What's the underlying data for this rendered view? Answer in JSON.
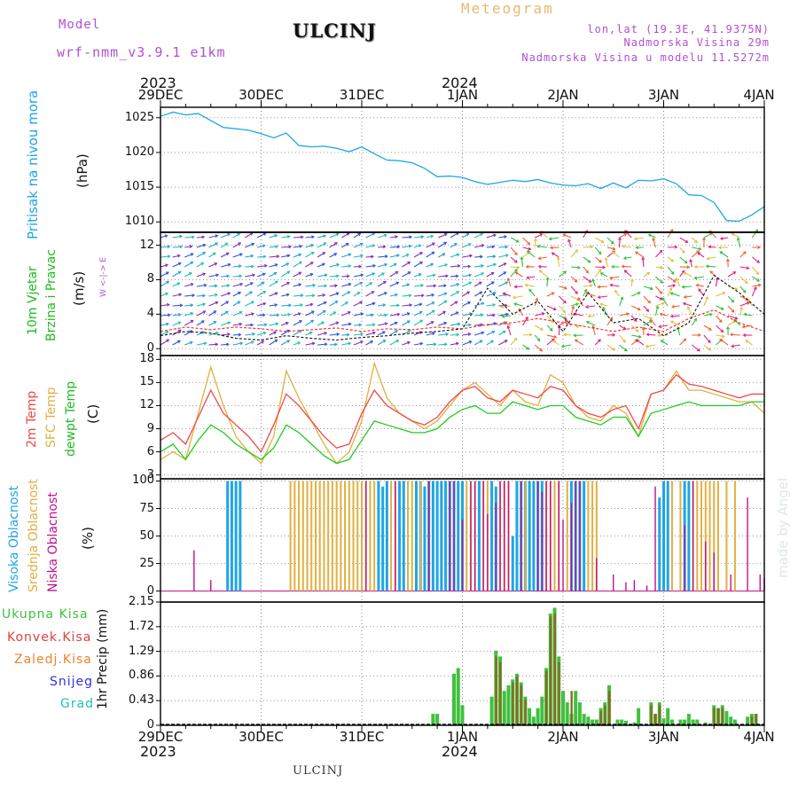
{
  "header": {
    "model_label": "Model",
    "model_name": "wrf-nmm_v3.9.1  e1km",
    "station": "ULCINJ",
    "product": "Meteogram",
    "lonlat": "lon,lat (19.3E, 41.9375N)",
    "altitude": "Nadmorska Visina 29m",
    "model_altitude": "Nadmorska Visina u modelu 11.5272m",
    "footer_station": "ULCINJ",
    "credit": "made by Angel"
  },
  "colors": {
    "pressure": "#1ea6e6",
    "t2m": "#f04848",
    "sfc": "#e0b040",
    "dew": "#20cc20",
    "high_cloud": "#1ea6e6",
    "mid_cloud": "#e0b040",
    "low_cloud": "#c0108c",
    "total_precip": "#40c040",
    "conv_precip": "#e04040",
    "frozen": "#f08030",
    "snow": "#3030e0",
    "hail": "#20c0c0",
    "title_purple": "#b050d0",
    "meteogram_title": "#e8b870"
  },
  "time_axis": {
    "top_year_left": "2023",
    "top_year_mid": "2024",
    "bottom_year_left": "2023",
    "bottom_year_mid": "2024",
    "ticks": [
      "29DEC",
      "30DEC",
      "31DEC",
      "1JAN",
      "2JAN",
      "3JAN",
      "4JAN"
    ]
  },
  "panels": {
    "pressure": {
      "ylabel": "Pritisak na nivou mora",
      "unit": "(hPa)",
      "yticks": [
        "1010",
        "1015",
        "1020",
        "1025"
      ]
    },
    "wind": {
      "ylabel1": "10m Vjetar",
      "ylabel2": "Brzina i Pravac",
      "unit": "(m/s)",
      "compass": "W <-|-> E",
      "yticks": [
        "0",
        "4",
        "8",
        "12"
      ]
    },
    "temp": {
      "ylabel1": "2m Temp",
      "ylabel2": "SFC Temp",
      "ylabel3": "dewpt Temp",
      "unit": "(C)",
      "yticks": [
        "3",
        "6",
        "9",
        "12",
        "15",
        "18"
      ]
    },
    "cloud": {
      "ylabel1": "Visoka Oblacnost",
      "ylabel2": "Srednja Oblacnost",
      "ylabel3": "Niska Oblacnost",
      "unit": "(%)",
      "yticks": [
        "0",
        "25",
        "50",
        "75",
        "100"
      ]
    },
    "precip": {
      "ylabel": "1hr Precip (mm)",
      "legend": [
        "Ukupna Kisa",
        "Konvek.Kisa",
        "Zaledj.Kisa",
        "Snijeg",
        "Grad"
      ],
      "yticks": [
        "0",
        "0.43",
        "0.86",
        "1.29",
        "1.72",
        "2.15"
      ]
    }
  },
  "chart_data": [
    {
      "type": "line",
      "ylabel": "Pritisak na nivou mora (hPa)",
      "x_hours": [
        0,
        3,
        6,
        9,
        12,
        15,
        18,
        21,
        24,
        27,
        30,
        33,
        36,
        39,
        42,
        45,
        48,
        51,
        54,
        57,
        60,
        63,
        66,
        69,
        72,
        75,
        78,
        81,
        84,
        87,
        90,
        93,
        96,
        99,
        102,
        105,
        108,
        111,
        114,
        117,
        120,
        123,
        126,
        129,
        132,
        135,
        138,
        141,
        144
      ],
      "series": [
        {
          "values": [
            1025.2,
            1025.8,
            1025.4,
            1025.6,
            1024.6,
            1023.6,
            1023.4,
            1023.2,
            1022.7,
            1022.1,
            1022.8,
            1021.0,
            1020.8,
            1020.9,
            1020.6,
            1020.1,
            1020.8,
            1019.8,
            1018.9,
            1018.8,
            1018.5,
            1017.7,
            1016.5,
            1016.6,
            1016.4,
            1015.8,
            1015.4,
            1015.7,
            1016.0,
            1015.8,
            1016.1,
            1015.6,
            1015.3,
            1015.2,
            1015.5,
            1014.8,
            1015.6,
            1014.9,
            1016.0,
            1015.9,
            1016.2,
            1015.5,
            1013.9,
            1013.8,
            1012.8,
            1010.2,
            1010.1,
            1011.0,
            1012.2
          ]
        }
      ],
      "ylim": [
        1008.5,
        1026.5
      ]
    },
    {
      "type": "line",
      "ylabel": "10m Vjetar Brzina i Pravac (m/s)",
      "x_hours": [
        0,
        6,
        12,
        18,
        24,
        30,
        36,
        42,
        48,
        54,
        60,
        66,
        72,
        78,
        84,
        90,
        96,
        102,
        108,
        114,
        120,
        126,
        132,
        138,
        144
      ],
      "series": [
        {
          "values": [
            2.0,
            2.5,
            2.2,
            2.5,
            2.3,
            2.0,
            2.2,
            2.4,
            2.0,
            2.3,
            2.2,
            2.5,
            2.3,
            2.8,
            3.0,
            3.5,
            3.0,
            2.5,
            2.0,
            2.5,
            2.0,
            3.5,
            4.5,
            3.0,
            2.0
          ]
        },
        {
          "values": [
            1.5,
            2.0,
            1.8,
            1.2,
            1.0,
            1.5,
            1.2,
            1.0,
            1.3,
            1.5,
            1.8,
            2.0,
            2.3,
            7.0,
            4.0,
            5.5,
            2.0,
            6.5,
            3.0,
            3.5,
            1.5,
            3.0,
            8.5,
            6.5,
            4.0
          ]
        }
      ],
      "ylim": [
        -0.8,
        13.5
      ]
    },
    {
      "type": "line",
      "ylabel": "Temp (C)",
      "x_hours": [
        0,
        3,
        6,
        9,
        12,
        15,
        18,
        21,
        24,
        27,
        30,
        33,
        36,
        39,
        42,
        45,
        48,
        51,
        54,
        57,
        60,
        63,
        66,
        69,
        72,
        75,
        78,
        81,
        84,
        87,
        90,
        93,
        96,
        99,
        102,
        105,
        108,
        111,
        114,
        117,
        120,
        123,
        126,
        129,
        132,
        135,
        138,
        141,
        144
      ],
      "series": [
        {
          "name": "2m Temp",
          "values": [
            7.5,
            8.5,
            7.0,
            10.5,
            14.0,
            11.0,
            9.5,
            8.0,
            6.0,
            9.5,
            13.5,
            12.0,
            10.0,
            8.0,
            6.5,
            7.0,
            11.0,
            14.0,
            12.0,
            11.0,
            10.0,
            9.5,
            10.5,
            12.5,
            14.0,
            14.5,
            13.0,
            12.5,
            14.0,
            13.5,
            13.0,
            14.5,
            14.0,
            12.0,
            11.0,
            10.5,
            11.5,
            12.0,
            9.0,
            13.5,
            14.0,
            16.0,
            14.8,
            14.5,
            14.0,
            13.5,
            13.0,
            13.5,
            13.5
          ]
        },
        {
          "name": "SFC Temp",
          "values": [
            5.0,
            6.0,
            5.0,
            11.0,
            17.0,
            12.0,
            8.0,
            6.0,
            4.5,
            8.0,
            16.5,
            13.0,
            10.0,
            7.0,
            4.5,
            6.0,
            10.0,
            17.5,
            13.0,
            11.0,
            10.0,
            9.0,
            10.0,
            12.0,
            14.0,
            15.0,
            13.5,
            12.0,
            14.0,
            12.5,
            12.0,
            16.0,
            15.0,
            12.0,
            10.5,
            10.0,
            12.0,
            11.0,
            8.0,
            13.5,
            14.0,
            16.5,
            14.0,
            14.0,
            13.5,
            13.0,
            12.5,
            12.5,
            11.0
          ]
        },
        {
          "name": "dewpt Temp",
          "values": [
            6.0,
            7.0,
            5.0,
            7.5,
            9.5,
            8.5,
            7.0,
            6.0,
            5.0,
            6.5,
            9.5,
            8.5,
            7.0,
            5.5,
            4.5,
            5.0,
            7.5,
            10.0,
            9.5,
            9.0,
            8.5,
            8.5,
            9.0,
            10.5,
            11.5,
            12.0,
            11.0,
            11.0,
            12.5,
            12.0,
            11.5,
            12.0,
            12.0,
            10.5,
            10.0,
            9.5,
            10.5,
            10.5,
            8.0,
            11.0,
            11.5,
            12.0,
            12.5,
            12.0,
            12.0,
            12.0,
            12.0,
            12.5,
            12.5
          ]
        }
      ],
      "ylim": [
        2.5,
        18.5
      ]
    },
    {
      "type": "bar",
      "ylabel": "Oblacnost (%)",
      "series": [
        {
          "name": "Visoka Oblacnost",
          "x_hours": [
            16,
            17,
            18,
            19,
            52,
            53,
            54,
            57,
            58,
            61,
            62,
            63,
            64,
            65,
            66,
            67,
            68,
            69,
            70,
            71,
            72,
            76,
            79,
            80,
            84,
            85,
            86,
            87,
            88,
            89,
            90,
            91,
            98,
            99,
            100,
            101,
            119,
            120,
            121,
            125,
            126
          ],
          "values": [
            100,
            100,
            100,
            100,
            100,
            95,
            100,
            100,
            100,
            100,
            100,
            95,
            100,
            100,
            100,
            100,
            100,
            100,
            100,
            100,
            100,
            100,
            100,
            95,
            50,
            100,
            100,
            100,
            100,
            100,
            100,
            100,
            100,
            100,
            100,
            100,
            85,
            100,
            100,
            100,
            100
          ]
        },
        {
          "name": "Srednja Oblacnost",
          "x_hours": [
            31,
            32,
            33,
            34,
            35,
            36,
            37,
            38,
            39,
            40,
            41,
            42,
            43,
            44,
            45,
            46,
            47,
            48,
            49,
            50,
            51,
            55,
            56,
            59,
            60,
            62,
            73,
            74,
            75,
            77,
            78,
            81,
            82,
            83,
            87,
            92,
            93,
            94,
            95,
            97,
            102,
            103,
            104,
            122,
            124,
            127,
            128,
            129,
            130,
            131,
            132,
            133,
            135,
            137
          ],
          "values": [
            100,
            100,
            100,
            100,
            100,
            100,
            100,
            100,
            100,
            100,
            100,
            100,
            100,
            100,
            100,
            100,
            100,
            100,
            100,
            100,
            100,
            100,
            100,
            100,
            100,
            100,
            100,
            100,
            100,
            100,
            100,
            100,
            100,
            100,
            100,
            100,
            100,
            100,
            100,
            100,
            100,
            100,
            100,
            100,
            100,
            100,
            100,
            100,
            100,
            100,
            100,
            100,
            100,
            100
          ]
        },
        {
          "name": "Niska Oblacnost",
          "x_hours": [
            8,
            12,
            49,
            56,
            64,
            69,
            70,
            72,
            74,
            75,
            77,
            78,
            80,
            81,
            82,
            83,
            86,
            90,
            91,
            92,
            93,
            95,
            96,
            98,
            99,
            100,
            104,
            108,
            111,
            113,
            116,
            118,
            125,
            127,
            130,
            132,
            136,
            140,
            143,
            144
          ],
          "values": [
            37,
            10,
            100,
            100,
            100,
            100,
            100,
            65,
            100,
            100,
            100,
            70,
            80,
            100,
            100,
            100,
            100,
            100,
            90,
            100,
            100,
            100,
            65,
            80,
            100,
            100,
            30,
            15,
            8,
            10,
            5,
            95,
            60,
            100,
            45,
            35,
            15,
            85,
            15,
            12
          ]
        }
      ],
      "ylim": [
        0,
        100
      ]
    },
    {
      "type": "bar",
      "ylabel": "1hr Precip (mm)",
      "series": [
        {
          "name": "Ukupna Kisa",
          "x_hours": [
            65,
            66,
            70,
            71,
            72,
            79,
            80,
            81,
            82,
            83,
            84,
            85,
            86,
            87,
            88,
            89,
            90,
            91,
            92,
            93,
            94,
            95,
            96,
            97,
            98,
            99,
            100,
            101,
            102,
            103,
            104,
            105,
            106,
            107,
            109,
            110,
            111,
            113,
            114,
            117,
            118,
            119,
            120,
            121,
            122,
            124,
            125,
            126,
            127,
            128,
            130,
            132,
            133,
            134,
            135,
            136,
            137,
            140,
            141,
            142
          ],
          "values": [
            0.2,
            0.2,
            0.9,
            1.0,
            0.35,
            0.5,
            1.3,
            1.2,
            0.6,
            0.7,
            0.8,
            0.9,
            0.75,
            0.5,
            0.3,
            0.15,
            0.3,
            0.5,
            1.0,
            1.95,
            2.05,
            1.2,
            0.6,
            0.4,
            0.2,
            0.6,
            0.4,
            0.2,
            0.15,
            0.1,
            0.1,
            0.3,
            0.4,
            0.7,
            0.1,
            0.1,
            0.08,
            0.05,
            0.3,
            0.4,
            0.2,
            0.4,
            0.12,
            0.3,
            0.1,
            0.1,
            0.1,
            0.2,
            0.1,
            0.1,
            0.05,
            0.35,
            0.3,
            0.35,
            0.25,
            0.15,
            0.1,
            0.15,
            0.2,
            0.2
          ]
        },
        {
          "name": "Konvek.Kisa",
          "x_hours": [
            80,
            81,
            84,
            85,
            86,
            87,
            92,
            93,
            94,
            95,
            98,
            105,
            106,
            107,
            117,
            118,
            119,
            132,
            133,
            134,
            141,
            142
          ],
          "values": [
            1.2,
            1.1,
            0.75,
            0.85,
            0.7,
            0.45,
            0.95,
            1.9,
            1.95,
            1.1,
            0.6,
            0.25,
            0.35,
            0.6,
            0.35,
            0.2,
            0.35,
            0.3,
            0.3,
            0.3,
            0.15,
            0.2
          ]
        }
      ],
      "ylim": [
        0,
        2.15
      ]
    }
  ]
}
